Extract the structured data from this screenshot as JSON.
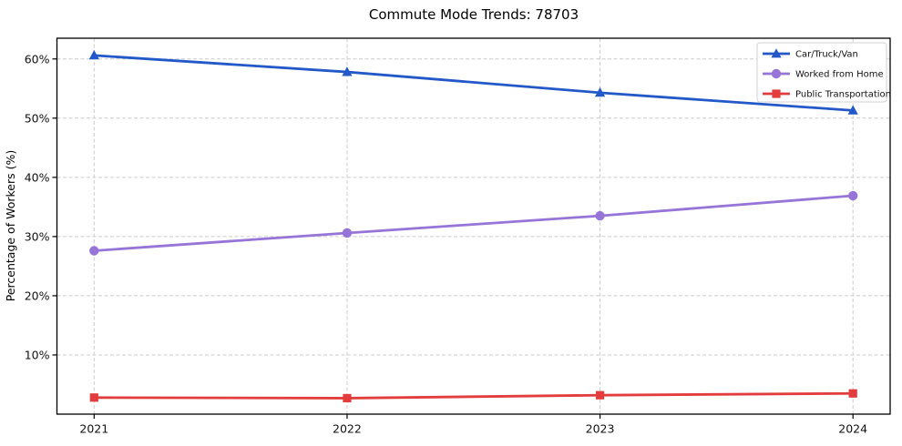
{
  "chart_data": {
    "type": "line",
    "title": "Commute Mode Trends: 78703",
    "xlabel": "",
    "ylabel": "Percentage of Workers (%)",
    "x": [
      2021,
      2022,
      2023,
      2024
    ],
    "x_tick_labels": [
      "2021",
      "2022",
      "2023",
      "2024"
    ],
    "y_ticks": [
      10,
      20,
      30,
      40,
      50,
      60
    ],
    "y_tick_labels": [
      "10%",
      "20%",
      "30%",
      "40%",
      "50%",
      "60%"
    ],
    "ylim": [
      0,
      63.5
    ],
    "grid": true,
    "grid_style": "dashed",
    "legend_position": "upper right",
    "series": [
      {
        "name": "Car/Truck/Van",
        "color": "#2358c8",
        "marker": "triangle",
        "values": [
          60.6,
          57.8,
          54.3,
          51.3
        ]
      },
      {
        "name": "Worked from Home",
        "color": "#9674d8",
        "marker": "circle",
        "values": [
          27.6,
          30.6,
          33.5,
          36.9
        ]
      },
      {
        "name": "Public Transportation",
        "color": "#e23c3c",
        "marker": "square",
        "values": [
          2.8,
          2.7,
          3.2,
          3.5
        ]
      }
    ]
  }
}
